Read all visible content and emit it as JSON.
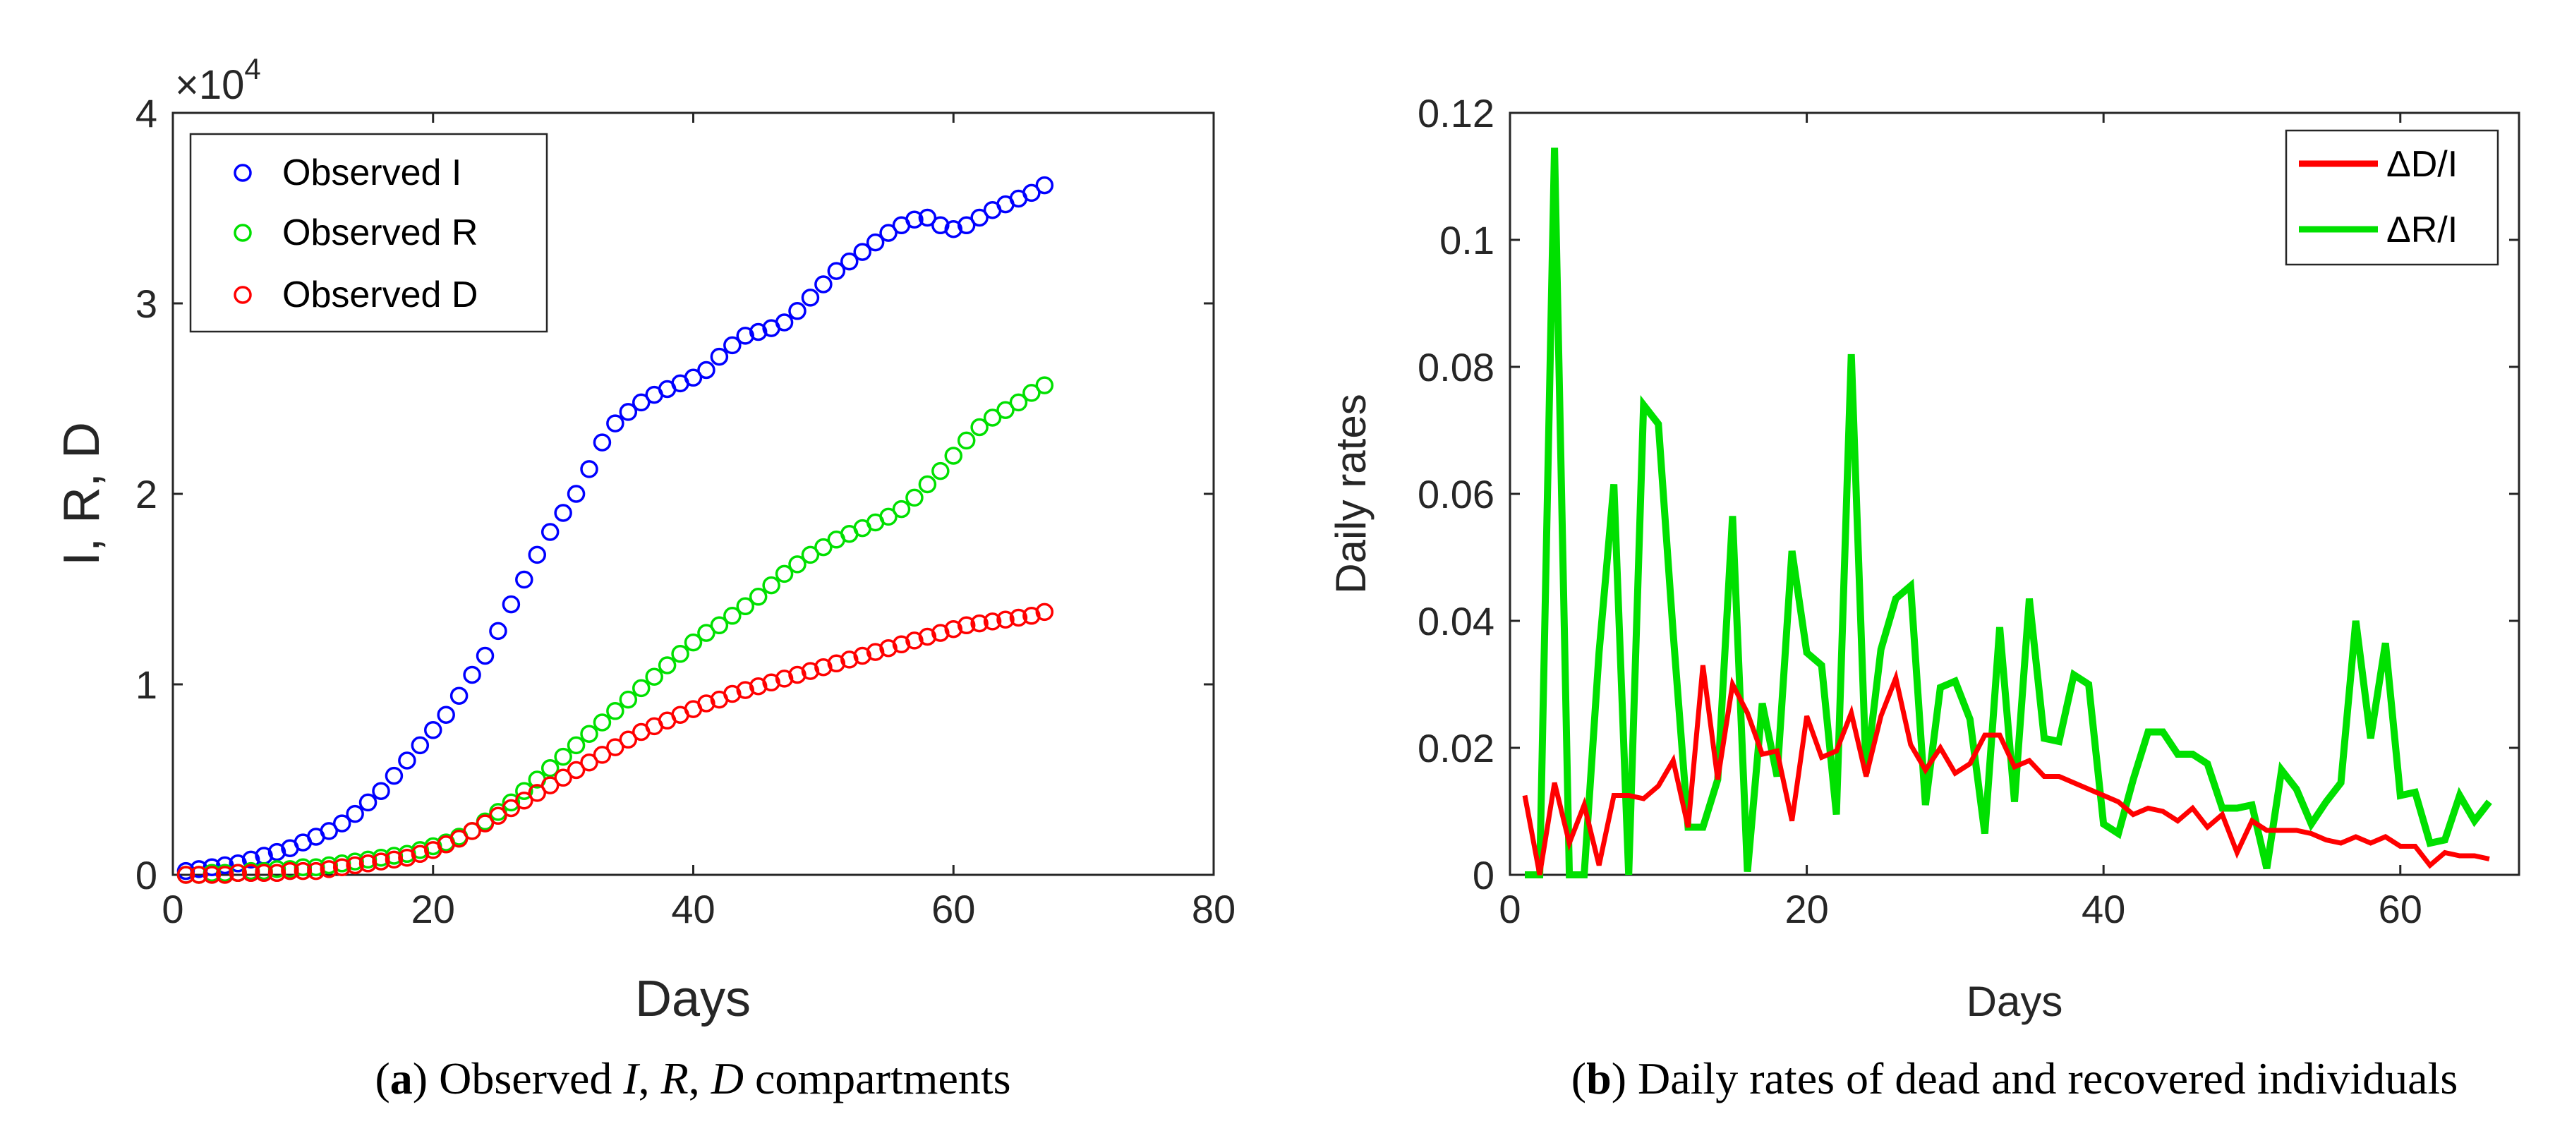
{
  "chart_data": [
    {
      "type": "scatter",
      "xlabel": "Days",
      "ylabel": "I, R, D",
      "xlim": [
        0,
        80
      ],
      "ylim": [
        0,
        4
      ],
      "xticks": [
        "0",
        "20",
        "40",
        "60",
        "80"
      ],
      "yticks": [
        "0",
        "1",
        "2",
        "3",
        "4"
      ],
      "exponent_label": "×10",
      "exponent_power": "4",
      "legend_position": "top-left",
      "caption": {
        "open": "(",
        "letter": "a",
        "close": ")",
        "pre": " Observed ",
        "i": "I",
        "sep1": ", ",
        "r": "R",
        "sep2": ", ",
        "d": "D",
        "post": " compartments"
      },
      "x": [
        1,
        2,
        3,
        4,
        5,
        6,
        7,
        8,
        9,
        10,
        11,
        12,
        13,
        14,
        15,
        16,
        17,
        18,
        19,
        20,
        21,
        22,
        23,
        24,
        25,
        26,
        27,
        28,
        29,
        30,
        31,
        32,
        33,
        34,
        35,
        36,
        37,
        38,
        39,
        40,
        41,
        42,
        43,
        44,
        45,
        46,
        47,
        48,
        49,
        50,
        51,
        52,
        53,
        54,
        55,
        56,
        57,
        58,
        59,
        60,
        61,
        62,
        63,
        64,
        65,
        66,
        67
      ],
      "series": [
        {
          "name": "Observed I",
          "color": "#0000ff",
          "values": [
            0.02,
            0.03,
            0.04,
            0.05,
            0.06,
            0.08,
            0.1,
            0.12,
            0.14,
            0.17,
            0.2,
            0.23,
            0.27,
            0.32,
            0.38,
            0.44,
            0.52,
            0.6,
            0.68,
            0.76,
            0.84,
            0.94,
            1.05,
            1.15,
            1.28,
            1.42,
            1.55,
            1.68,
            1.8,
            1.9,
            2.0,
            2.13,
            2.27,
            2.37,
            2.43,
            2.48,
            2.52,
            2.55,
            2.58,
            2.61,
            2.65,
            2.72,
            2.78,
            2.83,
            2.85,
            2.87,
            2.9,
            2.96,
            3.03,
            3.1,
            3.17,
            3.22,
            3.27,
            3.32,
            3.37,
            3.41,
            3.44,
            3.45,
            3.41,
            3.39,
            3.41,
            3.45,
            3.49,
            3.52,
            3.55,
            3.58,
            3.62
          ]
        },
        {
          "name": "Observed R",
          "color": "#00e000",
          "values": [
            0.0,
            0.0,
            0.01,
            0.01,
            0.01,
            0.02,
            0.02,
            0.03,
            0.03,
            0.04,
            0.04,
            0.05,
            0.06,
            0.07,
            0.08,
            0.09,
            0.1,
            0.11,
            0.13,
            0.15,
            0.17,
            0.2,
            0.23,
            0.28,
            0.33,
            0.38,
            0.44,
            0.5,
            0.56,
            0.62,
            0.68,
            0.74,
            0.8,
            0.86,
            0.92,
            0.98,
            1.04,
            1.1,
            1.16,
            1.22,
            1.27,
            1.31,
            1.36,
            1.41,
            1.46,
            1.52,
            1.58,
            1.63,
            1.68,
            1.72,
            1.76,
            1.79,
            1.82,
            1.85,
            1.88,
            1.92,
            1.98,
            2.05,
            2.12,
            2.2,
            2.28,
            2.35,
            2.4,
            2.44,
            2.48,
            2.53,
            2.57
          ]
        },
        {
          "name": "Observed D",
          "color": "#ff0000",
          "values": [
            0.0,
            0.0,
            0.0,
            0.0,
            0.01,
            0.01,
            0.01,
            0.01,
            0.02,
            0.02,
            0.02,
            0.03,
            0.04,
            0.05,
            0.06,
            0.07,
            0.08,
            0.09,
            0.11,
            0.13,
            0.16,
            0.19,
            0.23,
            0.27,
            0.31,
            0.35,
            0.39,
            0.43,
            0.47,
            0.51,
            0.55,
            0.59,
            0.63,
            0.67,
            0.71,
            0.75,
            0.78,
            0.81,
            0.84,
            0.87,
            0.9,
            0.92,
            0.95,
            0.97,
            0.99,
            1.01,
            1.03,
            1.05,
            1.07,
            1.09,
            1.11,
            1.13,
            1.15,
            1.17,
            1.19,
            1.21,
            1.23,
            1.25,
            1.27,
            1.29,
            1.31,
            1.32,
            1.33,
            1.34,
            1.35,
            1.36,
            1.38
          ]
        }
      ]
    },
    {
      "type": "line",
      "xlabel": "Days",
      "ylabel": "Daily rates",
      "xlim": [
        0,
        68
      ],
      "ylim": [
        0,
        0.12
      ],
      "xticks": [
        "0",
        "20",
        "40",
        "60"
      ],
      "yticks": [
        "0",
        "0.02",
        "0.04",
        "0.06",
        "0.08",
        "0.1",
        "0.12"
      ],
      "legend_position": "top-right",
      "caption": {
        "open": "(",
        "letter": "b",
        "close": ")",
        "text": " Daily rates of dead and recovered individuals"
      },
      "x": [
        1,
        2,
        3,
        4,
        5,
        6,
        7,
        8,
        9,
        10,
        11,
        12,
        13,
        14,
        15,
        16,
        17,
        18,
        19,
        20,
        21,
        22,
        23,
        24,
        25,
        26,
        27,
        28,
        29,
        30,
        31,
        32,
        33,
        34,
        35,
        36,
        37,
        38,
        39,
        40,
        41,
        42,
        43,
        44,
        45,
        46,
        47,
        48,
        49,
        50,
        51,
        52,
        53,
        54,
        55,
        56,
        57,
        58,
        59,
        60,
        61,
        62,
        63,
        64,
        65,
        66
      ],
      "series": [
        {
          "name": "ΔD/I",
          "color": "#ff0000",
          "values": [
            0.0125,
            0.0,
            0.0145,
            0.005,
            0.011,
            0.0015,
            0.0125,
            0.0125,
            0.012,
            0.014,
            0.018,
            0.0075,
            0.033,
            0.015,
            0.03,
            0.0255,
            0.019,
            0.0195,
            0.0085,
            0.025,
            0.0185,
            0.0195,
            0.0255,
            0.0155,
            0.025,
            0.031,
            0.0205,
            0.0165,
            0.02,
            0.016,
            0.0175,
            0.022,
            0.022,
            0.017,
            0.018,
            0.0155,
            0.0155,
            0.0145,
            0.0135,
            0.0125,
            0.0115,
            0.0095,
            0.0105,
            0.01,
            0.0085,
            0.0105,
            0.0075,
            0.0095,
            0.0035,
            0.0085,
            0.007,
            0.007,
            0.007,
            0.0065,
            0.0055,
            0.005,
            0.006,
            0.005,
            0.006,
            0.0045,
            0.0045,
            0.0015,
            0.0035,
            0.003,
            0.003,
            0.0025
          ]
        },
        {
          "name": "ΔR/I",
          "color": "#00e000",
          "values": [
            0.0,
            0.0,
            0.1145,
            0.0,
            0.0,
            0.035,
            0.0615,
            0.0,
            0.074,
            0.071,
            0.038,
            0.0075,
            0.0075,
            0.015,
            0.0565,
            0.0005,
            0.027,
            0.0155,
            0.051,
            0.035,
            0.033,
            0.0095,
            0.082,
            0.016,
            0.0355,
            0.0435,
            0.0455,
            0.011,
            0.0295,
            0.0305,
            0.0245,
            0.0065,
            0.039,
            0.0115,
            0.0435,
            0.0215,
            0.021,
            0.0315,
            0.03,
            0.008,
            0.0065,
            0.015,
            0.0225,
            0.0225,
            0.019,
            0.019,
            0.0175,
            0.0105,
            0.0105,
            0.011,
            0.001,
            0.0165,
            0.0135,
            0.008,
            0.0115,
            0.0145,
            0.04,
            0.0215,
            0.0365,
            0.0125,
            0.013,
            0.005,
            0.0055,
            0.0125,
            0.0085,
            0.0115
          ]
        }
      ]
    }
  ]
}
